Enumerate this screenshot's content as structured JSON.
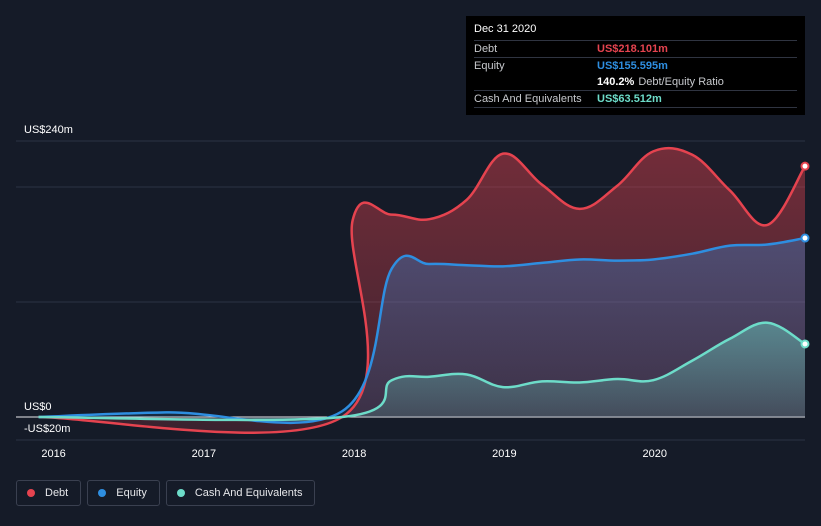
{
  "tooltip": {
    "date": "Dec 31 2020",
    "debt_label": "Debt",
    "debt_value": "US$218.101m",
    "equity_label": "Equity",
    "equity_value": "US$155.595m",
    "ratio_value": "140.2%",
    "ratio_label": "Debt/Equity Ratio",
    "cash_label": "Cash And Equivalents",
    "cash_value": "US$63.512m"
  },
  "legend": [
    {
      "label": "Debt",
      "color": "#e5434f"
    },
    {
      "label": "Equity",
      "color": "#2e8ee0"
    },
    {
      "label": "Cash And Equivalents",
      "color": "#6ddcc9"
    }
  ],
  "colors": {
    "debt": "#e5434f",
    "equity": "#2e8ee0",
    "cash": "#6ddcc9",
    "background": "#151b28"
  },
  "chart_data": {
    "type": "area",
    "ylim": [
      -20,
      240
    ],
    "y_tick_labels": [
      "US$240m",
      "US$0",
      "-US$20m"
    ],
    "x_tick_labels": [
      "2016",
      "2017",
      "2018",
      "2019",
      "2020"
    ],
    "x_ticks": [
      2016.0,
      2017.0,
      2018.0,
      2019.0,
      2020.0
    ],
    "xlim": [
      2015.75,
      2021.0
    ],
    "grid": true,
    "series": [
      {
        "name": "Debt",
        "x": [
          2015.9,
          2017.92,
          2017.99,
          2018.25,
          2018.5,
          2018.75,
          2018.99,
          2019.25,
          2019.5,
          2019.75,
          2019.99,
          2020.25,
          2020.5,
          2020.75,
          2021.0
        ],
        "values": [
          0,
          0,
          171,
          176,
          172,
          189,
          229,
          202,
          181,
          201,
          231,
          228,
          197,
          167,
          218.1
        ]
      },
      {
        "name": "Equity",
        "x": [
          2015.9,
          2016.75,
          2017.92,
          2018.25,
          2018.5,
          2018.75,
          2018.99,
          2019.25,
          2019.5,
          2019.75,
          2019.99,
          2020.25,
          2020.5,
          2020.75,
          2021.0
        ],
        "values": [
          0,
          4,
          5,
          129,
          133,
          132,
          131,
          134,
          137,
          136,
          137,
          142,
          149,
          150,
          155.6
        ]
      },
      {
        "name": "Cash And Equivalents",
        "x": [
          2015.9,
          2017.92,
          2018.25,
          2018.5,
          2018.75,
          2018.99,
          2019.25,
          2019.5,
          2019.75,
          2019.99,
          2020.25,
          2020.5,
          2020.75,
          2021.0
        ],
        "values": [
          0,
          0,
          32,
          35,
          37,
          26,
          31,
          30,
          33,
          32,
          49,
          68,
          82,
          63.5
        ]
      }
    ]
  }
}
